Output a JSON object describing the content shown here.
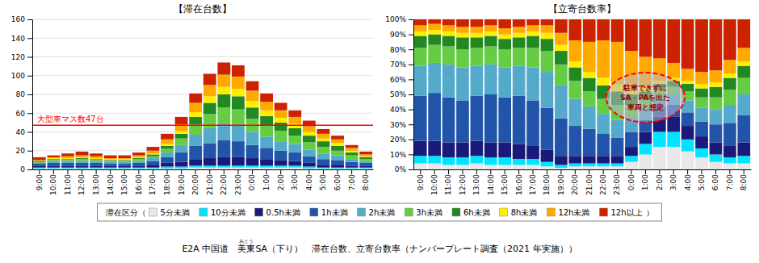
{
  "chart_data": [
    {
      "type": "bar",
      "title": "【滞在台数】",
      "stacked": true,
      "grid": true,
      "legend": "bottom",
      "categories": [
        "9:00",
        "10:00",
        "11:00",
        "12:00",
        "13:00",
        "14:00",
        "15:00",
        "16:00",
        "17:00",
        "18:00",
        "19:00",
        "20:00",
        "21:00",
        "22:00",
        "23:00",
        "0:00",
        "1:00",
        "2:00",
        "3:00",
        "4:00",
        "5:00",
        "6:00",
        "7:00",
        "8:00"
      ],
      "series": [
        {
          "name": "5分未満",
          "color": "#e8e8e8",
          "values": [
            1,
            1,
            1,
            1,
            1,
            1,
            1,
            1,
            1,
            1,
            1,
            2,
            2,
            2,
            2,
            2,
            2,
            2,
            2,
            1,
            1,
            1,
            1,
            1
          ]
        },
        {
          "name": "10分未満",
          "color": "#00e5ff",
          "values": [
            1,
            1,
            1,
            1,
            1,
            1,
            1,
            1,
            1,
            2,
            2,
            2,
            2,
            2,
            2,
            2,
            2,
            2,
            2,
            2,
            1,
            1,
            1,
            1
          ]
        },
        {
          "name": "0.5h未満",
          "color": "#1a1a7a",
          "values": [
            2,
            2,
            2,
            2,
            2,
            2,
            2,
            2,
            3,
            4,
            5,
            7,
            8,
            9,
            9,
            8,
            7,
            6,
            5,
            4,
            3,
            3,
            2,
            2
          ]
        },
        {
          "name": "1h未満",
          "color": "#2255aa",
          "values": [
            2,
            3,
            3,
            3,
            3,
            2,
            2,
            3,
            4,
            6,
            10,
            14,
            16,
            18,
            17,
            14,
            12,
            10,
            9,
            7,
            6,
            5,
            4,
            3
          ]
        },
        {
          "name": "2h未満",
          "color": "#55aacc",
          "values": [
            1,
            2,
            2,
            2,
            2,
            2,
            2,
            2,
            3,
            5,
            8,
            12,
            16,
            18,
            17,
            14,
            12,
            10,
            9,
            7,
            6,
            5,
            3,
            2
          ]
        },
        {
          "name": "3h未満",
          "color": "#66cc44",
          "values": [
            1,
            1,
            1,
            2,
            1,
            1,
            1,
            2,
            2,
            4,
            7,
            11,
            15,
            17,
            17,
            14,
            12,
            11,
            9,
            8,
            7,
            5,
            4,
            2
          ]
        },
        {
          "name": "6h未満",
          "color": "#228822",
          "values": [
            1,
            1,
            1,
            1,
            1,
            1,
            1,
            1,
            2,
            3,
            5,
            8,
            12,
            14,
            14,
            12,
            10,
            9,
            8,
            7,
            6,
            5,
            3,
            2
          ]
        },
        {
          "name": "8h未満",
          "color": "#ffee00",
          "values": [
            0,
            1,
            1,
            1,
            1,
            1,
            1,
            1,
            1,
            2,
            3,
            5,
            7,
            8,
            8,
            7,
            6,
            5,
            5,
            4,
            3,
            3,
            2,
            1
          ]
        },
        {
          "name": "12h未満",
          "color": "#ffaa00",
          "values": [
            1,
            1,
            2,
            2,
            2,
            1,
            1,
            2,
            3,
            5,
            7,
            10,
            12,
            13,
            13,
            11,
            9,
            8,
            7,
            6,
            5,
            4,
            3,
            2
          ]
        },
        {
          "name": "12h以上",
          "color": "#cc2200",
          "values": [
            3,
            2,
            3,
            4,
            3,
            3,
            3,
            3,
            4,
            6,
            8,
            10,
            12,
            13,
            12,
            10,
            9,
            8,
            7,
            6,
            5,
            4,
            3,
            3
          ]
        }
      ],
      "ylim": [
        0,
        160
      ],
      "yticks": [
        0,
        20,
        40,
        60,
        80,
        100,
        120,
        140,
        160
      ],
      "reference_line": {
        "y": 47,
        "label": "大型車マス数47台",
        "color": "red"
      }
    },
    {
      "type": "bar",
      "title": "【立寄台数率】",
      "stacked": true,
      "grid": true,
      "categories": [
        "9:00",
        "10:00",
        "11:00",
        "12:00",
        "13:00",
        "14:00",
        "15:00",
        "16:00",
        "17:00",
        "18:00",
        "19:00",
        "20:00",
        "21:00",
        "22:00",
        "23:00",
        "0:00",
        "1:00",
        "2:00",
        "3:00",
        "4:00",
        "5:00",
        "6:00",
        "7:00",
        "8:00"
      ],
      "series": [
        {
          "name": "5分未満",
          "color": "#e8e8e8",
          "values": [
            4,
            4,
            3,
            3,
            4,
            3,
            3,
            3,
            3,
            2,
            1,
            2,
            2,
            2,
            2,
            5,
            10,
            15,
            15,
            12,
            8,
            5,
            4,
            4
          ]
        },
        {
          "name": "10分未満",
          "color": "#00e5ff",
          "values": [
            5,
            5,
            5,
            5,
            5,
            5,
            5,
            4,
            4,
            3,
            2,
            2,
            2,
            2,
            2,
            4,
            7,
            10,
            10,
            8,
            6,
            5,
            4,
            5
          ]
        },
        {
          "name": "0.5h未満",
          "color": "#1a1a7a",
          "values": [
            10,
            10,
            10,
            10,
            10,
            10,
            10,
            10,
            9,
            8,
            6,
            5,
            5,
            5,
            5,
            6,
            8,
            10,
            10,
            9,
            8,
            8,
            8,
            9
          ]
        },
        {
          "name": "1h未満",
          "color": "#2255aa",
          "values": [
            30,
            32,
            30,
            28,
            30,
            32,
            30,
            32,
            30,
            28,
            25,
            20,
            18,
            15,
            12,
            10,
            8,
            7,
            8,
            9,
            10,
            12,
            15,
            18
          ]
        },
        {
          "name": "2h未満",
          "color": "#55aacc",
          "values": [
            20,
            20,
            22,
            22,
            20,
            20,
            20,
            20,
            22,
            24,
            22,
            18,
            15,
            13,
            12,
            10,
            8,
            6,
            7,
            8,
            9,
            10,
            12,
            14
          ]
        },
        {
          "name": "3h未満",
          "color": "#66cc44",
          "values": [
            12,
            12,
            12,
            12,
            12,
            12,
            12,
            12,
            13,
            14,
            14,
            12,
            10,
            10,
            10,
            8,
            6,
            5,
            5,
            6,
            7,
            8,
            10,
            11
          ]
        },
        {
          "name": "6h未満",
          "color": "#228822",
          "values": [
            8,
            7,
            7,
            8,
            7,
            7,
            7,
            7,
            8,
            8,
            9,
            9,
            9,
            9,
            9,
            7,
            5,
            4,
            4,
            5,
            6,
            7,
            8,
            8
          ]
        },
        {
          "name": "8h未満",
          "color": "#ffee00",
          "values": [
            3,
            3,
            3,
            3,
            3,
            3,
            3,
            3,
            3,
            4,
            4,
            4,
            4,
            5,
            5,
            4,
            3,
            2,
            2,
            2,
            3,
            3,
            3,
            3
          ]
        },
        {
          "name": "12h未満",
          "color": "#ffaa00",
          "values": [
            4,
            4,
            4,
            4,
            4,
            4,
            4,
            4,
            4,
            5,
            8,
            14,
            20,
            25,
            28,
            25,
            20,
            15,
            10,
            8,
            8,
            8,
            9,
            9
          ]
        },
        {
          "name": "12h以上",
          "color": "#cc2200",
          "values": [
            4,
            3,
            4,
            5,
            5,
            4,
            6,
            5,
            4,
            4,
            9,
            14,
            15,
            14,
            15,
            21,
            25,
            26,
            29,
            33,
            35,
            34,
            27,
            19
          ]
        }
      ],
      "ylim": [
        0,
        100
      ],
      "yticks": [
        {
          "value": 0,
          "label": "0%"
        },
        {
          "value": 10,
          "label": "10%"
        },
        {
          "value": 20,
          "label": "20%"
        },
        {
          "value": 30,
          "label": "30%"
        },
        {
          "value": 40,
          "label": "40%"
        },
        {
          "value": 50,
          "label": "50%"
        },
        {
          "value": 60,
          "label": "60%"
        },
        {
          "value": 70,
          "label": "70%"
        },
        {
          "value": 80,
          "label": "80%"
        },
        {
          "value": 90,
          "label": "90%"
        },
        {
          "value": 100,
          "label": "100%"
        }
      ],
      "annotations": [
        {
          "text": "駐車できずに\nSA・PAを出た\n車両と想定",
          "x": "1:00",
          "y": 48
        }
      ]
    }
  ],
  "legend_prefix": "滞在区分（",
  "legend_suffix": "）",
  "caption": {
    "text": "E2A 中国道　美東SA（下り）　滞在台数、立寄台数率（ナンバープレート調査（2021 年実施））",
    "ruby": {
      "base": "美東",
      "text": "みとう"
    }
  }
}
